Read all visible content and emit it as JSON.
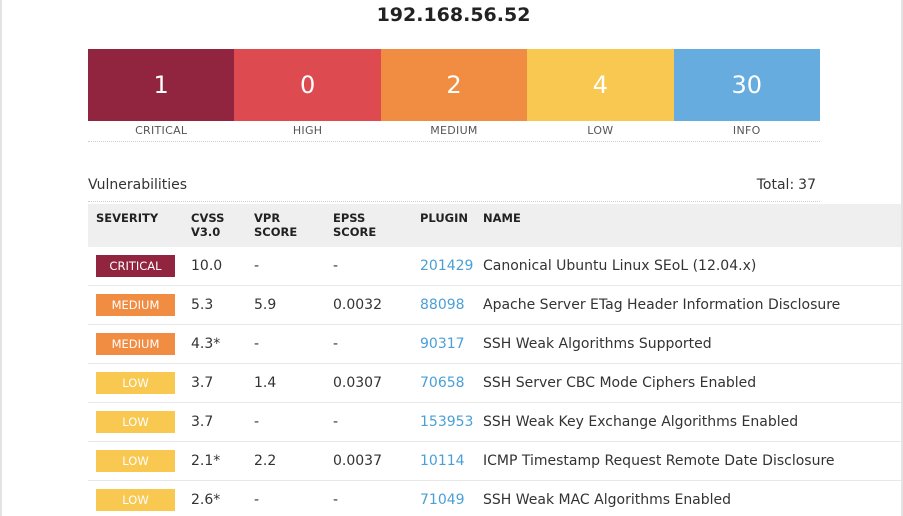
{
  "host": "192.168.56.52",
  "summary": [
    {
      "count": "1",
      "label": "CRITICAL",
      "color": "#91243e"
    },
    {
      "count": "0",
      "label": "HIGH",
      "color": "#dd4b50"
    },
    {
      "count": "2",
      "label": "MEDIUM",
      "color": "#f18c43"
    },
    {
      "count": "4",
      "label": "LOW",
      "color": "#f8c851"
    },
    {
      "count": "30",
      "label": "INFO",
      "color": "#67acdf"
    }
  ],
  "vulnerabilities": {
    "title": "Vulnerabilities",
    "total_label": "Total:",
    "total_value": "37"
  },
  "table": {
    "headers": {
      "severity": "SEVERITY",
      "cvss_line1": "CVSS",
      "cvss_line2": "V3.0",
      "vpr": "VPR SCORE",
      "epss": "EPSS SCORE",
      "plugin": "PLUGIN",
      "name": "NAME"
    },
    "rows": [
      {
        "severity": "CRITICAL",
        "severity_color": "#91243e",
        "cvss": "10.0",
        "vpr": "-",
        "epss": "-",
        "plugin": "201429",
        "name": "Canonical Ubuntu Linux SEoL (12.04.x)"
      },
      {
        "severity": "MEDIUM",
        "severity_color": "#f18c43",
        "cvss": "5.3",
        "vpr": "5.9",
        "epss": "0.0032",
        "plugin": "88098",
        "name": "Apache Server ETag Header Information Disclosure"
      },
      {
        "severity": "MEDIUM",
        "severity_color": "#f18c43",
        "cvss": "4.3*",
        "vpr": "-",
        "epss": "-",
        "plugin": "90317",
        "name": "SSH Weak Algorithms Supported"
      },
      {
        "severity": "LOW",
        "severity_color": "#f8c851",
        "cvss": "3.7",
        "vpr": "1.4",
        "epss": "0.0307",
        "plugin": "70658",
        "name": "SSH Server CBC Mode Ciphers Enabled"
      },
      {
        "severity": "LOW",
        "severity_color": "#f8c851",
        "cvss": "3.7",
        "vpr": "-",
        "epss": "-",
        "plugin": "153953",
        "name": "SSH Weak Key Exchange Algorithms Enabled"
      },
      {
        "severity": "LOW",
        "severity_color": "#f8c851",
        "cvss": "2.1*",
        "vpr": "2.2",
        "epss": "0.0037",
        "plugin": "10114",
        "name": "ICMP Timestamp Request Remote Date Disclosure"
      },
      {
        "severity": "LOW",
        "severity_color": "#f8c851",
        "cvss": "2.6*",
        "vpr": "-",
        "epss": "-",
        "plugin": "71049",
        "name": "SSH Weak MAC Algorithms Enabled"
      }
    ]
  }
}
